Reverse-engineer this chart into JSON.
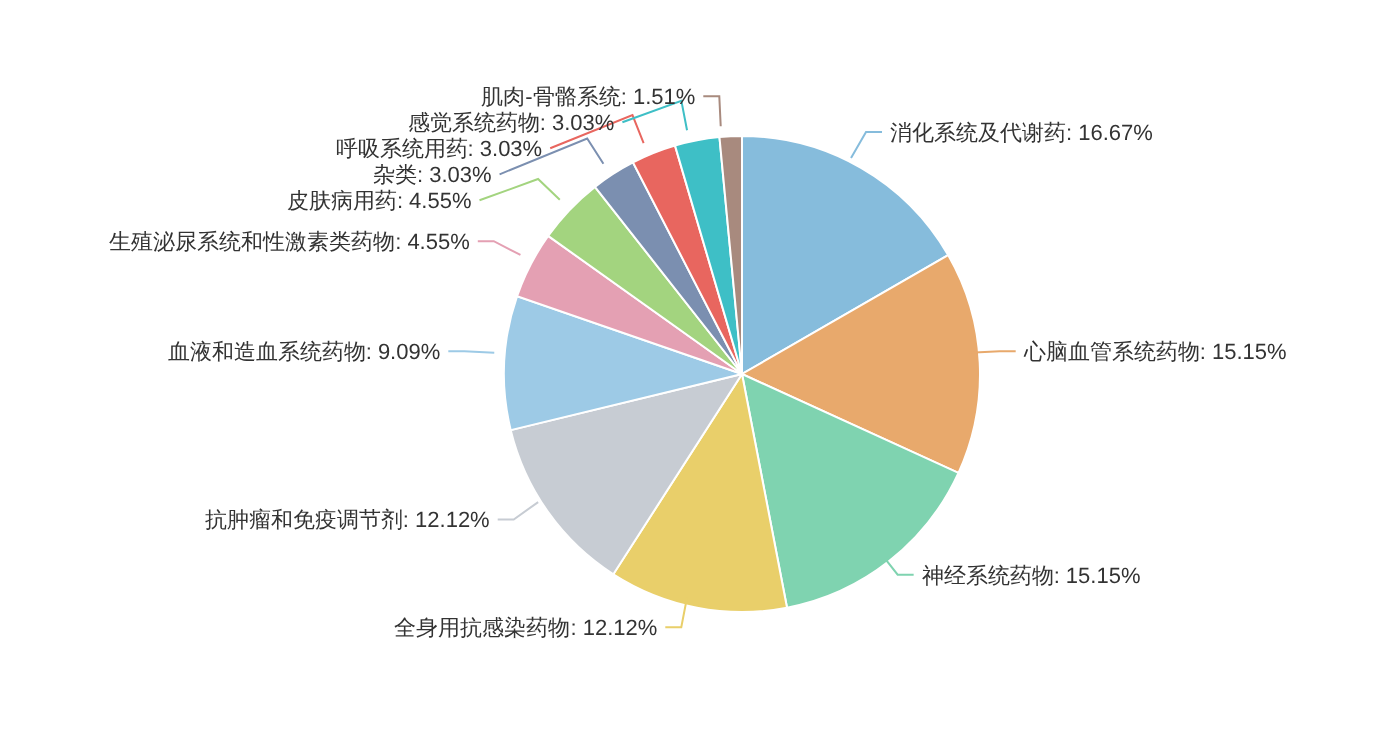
{
  "chart_data": {
    "type": "pie",
    "categories": [
      "消化系统及代谢药",
      "心脑血管系统药物",
      "神经系统药物",
      "全身用抗感染药物",
      "抗肿瘤和免疫调节剂",
      "血液和造血系统药物",
      "生殖泌尿系统和性激素类药物",
      "皮肤病用药",
      "杂类",
      "呼吸系统用药",
      "感觉系统药物",
      "肌肉-骨骼系统"
    ],
    "values": [
      16.67,
      15.15,
      15.15,
      12.12,
      12.12,
      9.09,
      4.55,
      4.55,
      3.03,
      3.03,
      3.03,
      1.51
    ],
    "value_labels": [
      "16.67%",
      "15.15%",
      "15.15%",
      "12.12%",
      "12.12%",
      "9.09%",
      "4.55%",
      "4.55%",
      "3.03%",
      "3.03%",
      "3.03%",
      "1.51%"
    ],
    "colors": [
      "#86bcdc",
      "#e8a96c",
      "#7fd3b0",
      "#e9cf6a",
      "#c7ccd3",
      "#9dcae6",
      "#e4a0b3",
      "#a3d47f",
      "#7b8fb0",
      "#e8665f",
      "#3ebfc6",
      "#a88a7e"
    ],
    "legend": false
  }
}
